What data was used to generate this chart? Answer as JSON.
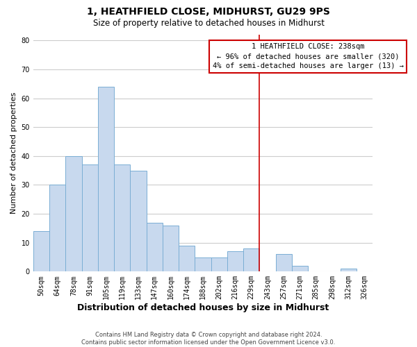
{
  "title": "1, HEATHFIELD CLOSE, MIDHURST, GU29 9PS",
  "subtitle": "Size of property relative to detached houses in Midhurst",
  "xlabel": "Distribution of detached houses by size in Midhurst",
  "ylabel": "Number of detached properties",
  "bar_labels": [
    "50sqm",
    "64sqm",
    "78sqm",
    "91sqm",
    "105sqm",
    "119sqm",
    "133sqm",
    "147sqm",
    "160sqm",
    "174sqm",
    "188sqm",
    "202sqm",
    "216sqm",
    "229sqm",
    "243sqm",
    "257sqm",
    "271sqm",
    "285sqm",
    "298sqm",
    "312sqm",
    "326sqm"
  ],
  "bar_heights": [
    14,
    30,
    40,
    37,
    64,
    37,
    35,
    17,
    16,
    9,
    5,
    5,
    7,
    8,
    0,
    6,
    2,
    0,
    0,
    1,
    0
  ],
  "bar_color": "#c8d9ee",
  "bar_edge_color": "#7aaed4",
  "vline_index": 13.5,
  "vline_color": "#cc0000",
  "annotation_title": "1 HEATHFIELD CLOSE: 238sqm",
  "annotation_line1": "← 96% of detached houses are smaller (320)",
  "annotation_line2": "4% of semi-detached houses are larger (13) →",
  "annotation_box_color": "#ffffff",
  "annotation_box_edge_color": "#cc0000",
  "ylim": [
    0,
    82
  ],
  "yticks": [
    0,
    10,
    20,
    30,
    40,
    50,
    60,
    70,
    80
  ],
  "footer_line1": "Contains HM Land Registry data © Crown copyright and database right 2024.",
  "footer_line2": "Contains public sector information licensed under the Open Government Licence v3.0.",
  "background_color": "#ffffff",
  "grid_color": "#cccccc",
  "title_fontsize": 10,
  "subtitle_fontsize": 8.5,
  "xlabel_fontsize": 9,
  "ylabel_fontsize": 8,
  "tick_fontsize": 7,
  "annotation_fontsize": 7.5,
  "footer_fontsize": 6
}
